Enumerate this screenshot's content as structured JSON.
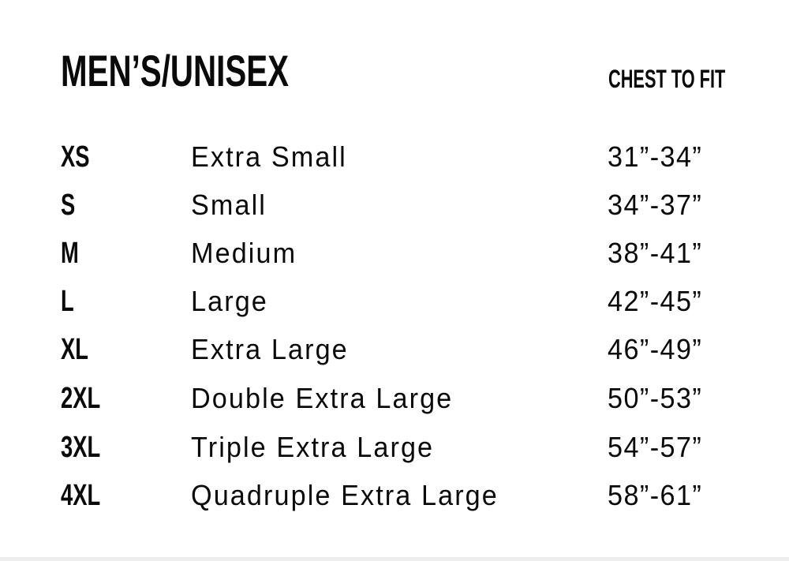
{
  "title": "MEN’S/UNISEX",
  "column_header": "CHEST TO FIT",
  "rows": [
    {
      "code": "XS",
      "name": "Extra Small",
      "chest": "31”-34”"
    },
    {
      "code": "S",
      "name": "Small",
      "chest": "34”-37”"
    },
    {
      "code": "M",
      "name": "Medium",
      "chest": "38”-41”"
    },
    {
      "code": "L",
      "name": "Large",
      "chest": "42”-45”"
    },
    {
      "code": "XL",
      "name": "Extra Large",
      "chest": "46”-49”"
    },
    {
      "code": "2XL",
      "name": "Double Extra Large",
      "chest": "50”-53”"
    },
    {
      "code": "3XL",
      "name": "Triple Extra Large",
      "chest": "54”-57”"
    },
    {
      "code": "4XL",
      "name": "Quadruple Extra Large",
      "chest": "58”-61”"
    }
  ]
}
